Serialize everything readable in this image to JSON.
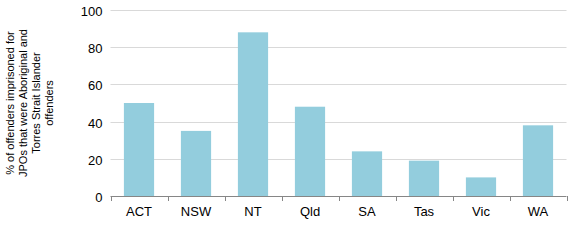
{
  "chart_data": {
    "type": "bar",
    "y_label": "% of offenders imprisoned for JPOs that were Aboriginal and Torres Strait Islander offenders",
    "categories": [
      "ACT",
      "NSW",
      "NT",
      "Qld",
      "SA",
      "Tas",
      "Vic",
      "WA"
    ],
    "values": [
      50,
      35,
      88,
      48,
      24,
      19,
      10,
      38
    ],
    "color": "#93cddd",
    "ylim": [
      0,
      100
    ],
    "yticks": [
      0,
      20,
      40,
      60,
      80,
      100
    ],
    "grid": true
  }
}
